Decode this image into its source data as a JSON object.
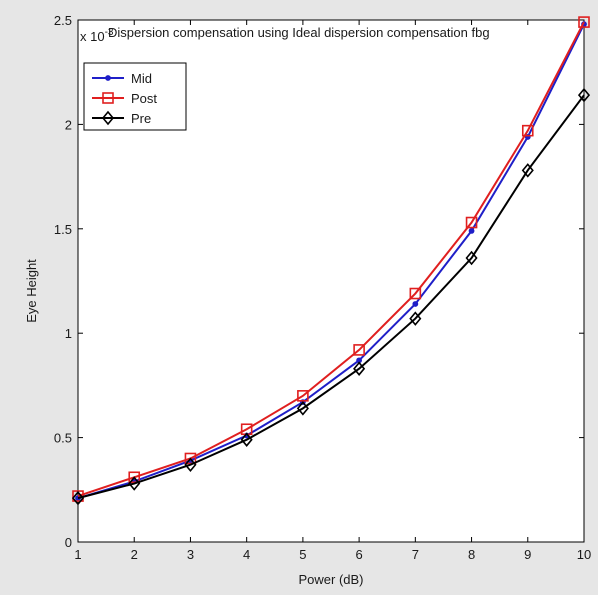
{
  "chart_data": {
    "type": "line",
    "title": "Dispersion compensation using Ideal dispersion compensation fbg",
    "xlabel": "Power (dB)",
    "ylabel": "Eye Height",
    "y_exponent_label": "x 10",
    "y_exponent_power": "-3",
    "xlim": [
      1,
      10
    ],
    "ylim": [
      0,
      2.5
    ],
    "x_ticks": [
      "1",
      "2",
      "3",
      "4",
      "5",
      "6",
      "7",
      "8",
      "9",
      "10"
    ],
    "y_ticks": [
      "0",
      "0.5",
      "1",
      "1.5",
      "2",
      "2.5"
    ],
    "y_tick_values": [
      0,
      0.5,
      1,
      1.5,
      2,
      2.5
    ],
    "x": [
      1,
      2,
      3,
      4,
      5,
      6,
      7,
      8,
      9,
      10
    ],
    "series": [
      {
        "name": "Mid",
        "color": "#1f1fc8",
        "marker": "dot",
        "values": [
          0.21,
          0.29,
          0.39,
          0.51,
          0.67,
          0.87,
          1.14,
          1.49,
          1.94,
          2.48
        ]
      },
      {
        "name": "Post",
        "color": "#e01f1f",
        "marker": "square",
        "values": [
          0.22,
          0.31,
          0.4,
          0.54,
          0.7,
          0.92,
          1.19,
          1.53,
          1.97,
          2.49
        ]
      },
      {
        "name": "Pre",
        "color": "#000000",
        "marker": "diamond",
        "values": [
          0.21,
          0.28,
          0.37,
          0.49,
          0.64,
          0.83,
          1.07,
          1.36,
          1.78,
          2.14
        ]
      }
    ],
    "legend_position": "top-left",
    "grid": false
  }
}
